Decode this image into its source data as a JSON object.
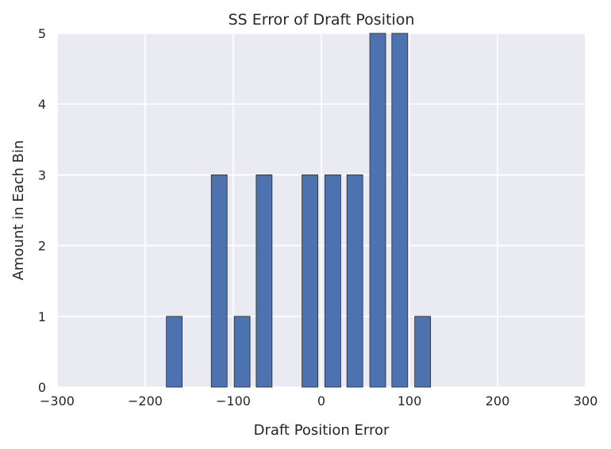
{
  "chart_data": {
    "type": "bar",
    "title": "SS Error of Draft Position",
    "xlabel": "Draft Position Error",
    "ylabel": "Amount in Each Bin",
    "xlim": [
      -300,
      300
    ],
    "ylim": [
      0,
      5
    ],
    "xticks": [
      -300,
      -200,
      -100,
      0,
      100,
      200,
      300
    ],
    "xtick_labels": [
      "−300",
      "−200",
      "−100",
      "0",
      "100",
      "200",
      "300"
    ],
    "yticks": [
      0,
      1,
      2,
      3,
      4,
      5
    ],
    "ytick_labels": [
      "0",
      "1",
      "2",
      "3",
      "4",
      "5"
    ],
    "grid": true,
    "bar_color": "#4c72b0",
    "bars": [
      {
        "x_start": -176,
        "x_end": -158,
        "value": 1
      },
      {
        "x_start": -125,
        "x_end": -107,
        "value": 3
      },
      {
        "x_start": -99,
        "x_end": -81,
        "value": 1
      },
      {
        "x_start": -74,
        "x_end": -56,
        "value": 3
      },
      {
        "x_start": -22,
        "x_end": -4,
        "value": 3
      },
      {
        "x_start": 4,
        "x_end": 22,
        "value": 3
      },
      {
        "x_start": 29,
        "x_end": 47,
        "value": 3
      },
      {
        "x_start": 55,
        "x_end": 73,
        "value": 5
      },
      {
        "x_start": 80,
        "x_end": 98,
        "value": 5
      },
      {
        "x_start": 106,
        "x_end": 124,
        "value": 1
      }
    ]
  }
}
